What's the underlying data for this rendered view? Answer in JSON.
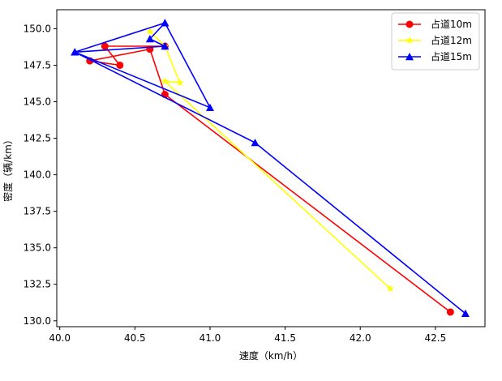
{
  "chart_data": {
    "type": "line",
    "title": "",
    "xlabel": "速度（km/h）",
    "ylabel": "密度（辆/km）",
    "xlim": [
      39.98,
      42.83
    ],
    "ylim": [
      129.6,
      151.3
    ],
    "xticks": [
      40.0,
      40.5,
      41.0,
      41.5,
      42.0,
      42.5
    ],
    "xtick_labels": [
      "40.0",
      "40.5",
      "41.0",
      "41.5",
      "42.0",
      "42.5"
    ],
    "yticks": [
      130.0,
      132.5,
      135.0,
      137.5,
      140.0,
      142.5,
      145.0,
      147.5,
      150.0
    ],
    "ytick_labels": [
      "130.0",
      "132.5",
      "135.0",
      "137.5",
      "140.0",
      "142.5",
      "145.0",
      "147.5",
      "150.0"
    ],
    "legend_position": "top-right",
    "grid": false,
    "series": [
      {
        "name": "占道10m",
        "color": "#ff0000",
        "marker": "circle",
        "points": [
          {
            "x": 40.7,
            "y": 148.8
          },
          {
            "x": 40.3,
            "y": 148.8
          },
          {
            "x": 40.4,
            "y": 147.5
          },
          {
            "x": 40.2,
            "y": 147.8
          },
          {
            "x": 40.6,
            "y": 148.6
          },
          {
            "x": 40.7,
            "y": 145.5
          },
          {
            "x": 42.6,
            "y": 130.6
          }
        ]
      },
      {
        "name": "占道12m",
        "color": "#ffff00",
        "marker": "star",
        "points": [
          {
            "x": 40.6,
            "y": 149.8
          },
          {
            "x": 40.7,
            "y": 148.8
          },
          {
            "x": 40.8,
            "y": 146.3
          },
          {
            "x": 40.7,
            "y": 146.4
          },
          {
            "x": 42.2,
            "y": 132.2
          }
        ]
      },
      {
        "name": "占道15m",
        "color": "#0000ff",
        "marker": "triangle",
        "points": [
          {
            "x": 40.7,
            "y": 150.4
          },
          {
            "x": 40.6,
            "y": 149.3
          },
          {
            "x": 40.7,
            "y": 148.8
          },
          {
            "x": 40.1,
            "y": 148.4
          },
          {
            "x": 40.7,
            "y": 150.4
          },
          {
            "x": 41.0,
            "y": 144.6
          },
          {
            "x": 40.1,
            "y": 148.4
          },
          {
            "x": 41.3,
            "y": 142.2
          },
          {
            "x": 42.7,
            "y": 130.5
          }
        ]
      }
    ]
  }
}
